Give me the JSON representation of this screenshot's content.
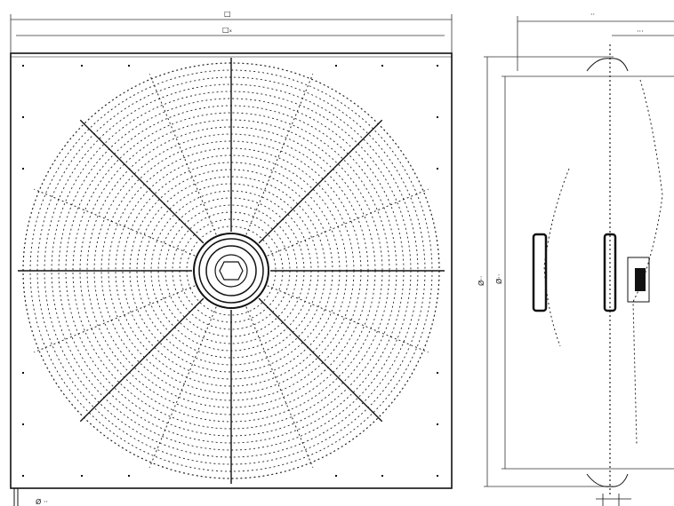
{
  "front_view": {
    "dim_outer_width": "□",
    "dim_inner_width": "□ₓ",
    "dim_hole_diameter": "Ø ··"
  },
  "side_view": {
    "dim_depth": "··",
    "dim_motor_depth": "···",
    "dim_diameter_outer": "Ø··",
    "dim_diameter_inner": "Ø··"
  }
}
